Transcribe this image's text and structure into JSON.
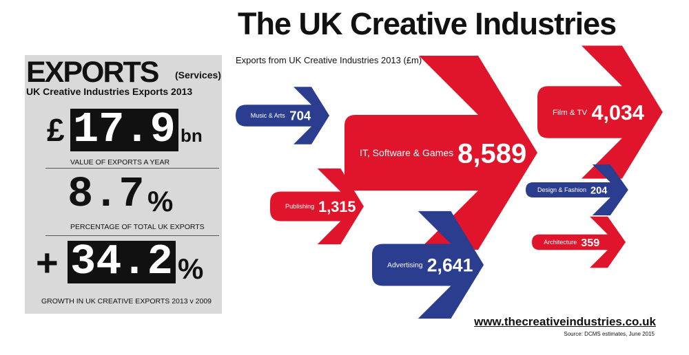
{
  "header": {
    "title": "The UK Creative Industries"
  },
  "panel": {
    "heading": "EXPORTS",
    "heading_sub": "(Services)",
    "subtitle": "UK Creative Industries Exports 2013",
    "stats": [
      {
        "prefix": "£",
        "value": "17.9",
        "suffix": "bn",
        "caption": "VALUE OF EXPORTS A YEAR"
      },
      {
        "prefix": "",
        "value": "8.7",
        "suffix": "%",
        "caption": "PERCENTAGE OF TOTAL UK EXPORTS"
      },
      {
        "prefix": "+",
        "value": "34.2",
        "suffix": "%",
        "caption": "GROWTH IN UK CREATIVE EXPORTS 2013 v 2009"
      }
    ]
  },
  "chart_data": {
    "type": "bar",
    "title": "Exports from UK Creative Industries 2013 (£m)",
    "categories": [
      "Music & Arts",
      "IT, Software & Games",
      "Film & TV",
      "Publishing",
      "Design & Fashion",
      "Architecture",
      "Advertising"
    ],
    "values": [
      704,
      8589,
      4034,
      1315,
      204,
      359,
      2641
    ],
    "value_labels": [
      "704",
      "8,589",
      "4,034",
      "1,315",
      "204",
      "359",
      "2,641"
    ],
    "colors": {
      "red": "#e0142a",
      "blue": "#2a3d8f"
    },
    "series_colors": [
      "blue",
      "red",
      "red",
      "red",
      "blue",
      "red",
      "blue"
    ]
  },
  "footer": {
    "url": "www.thecreativeindustries.co.uk",
    "source": "Source: DCMS estimates, June 2015"
  }
}
